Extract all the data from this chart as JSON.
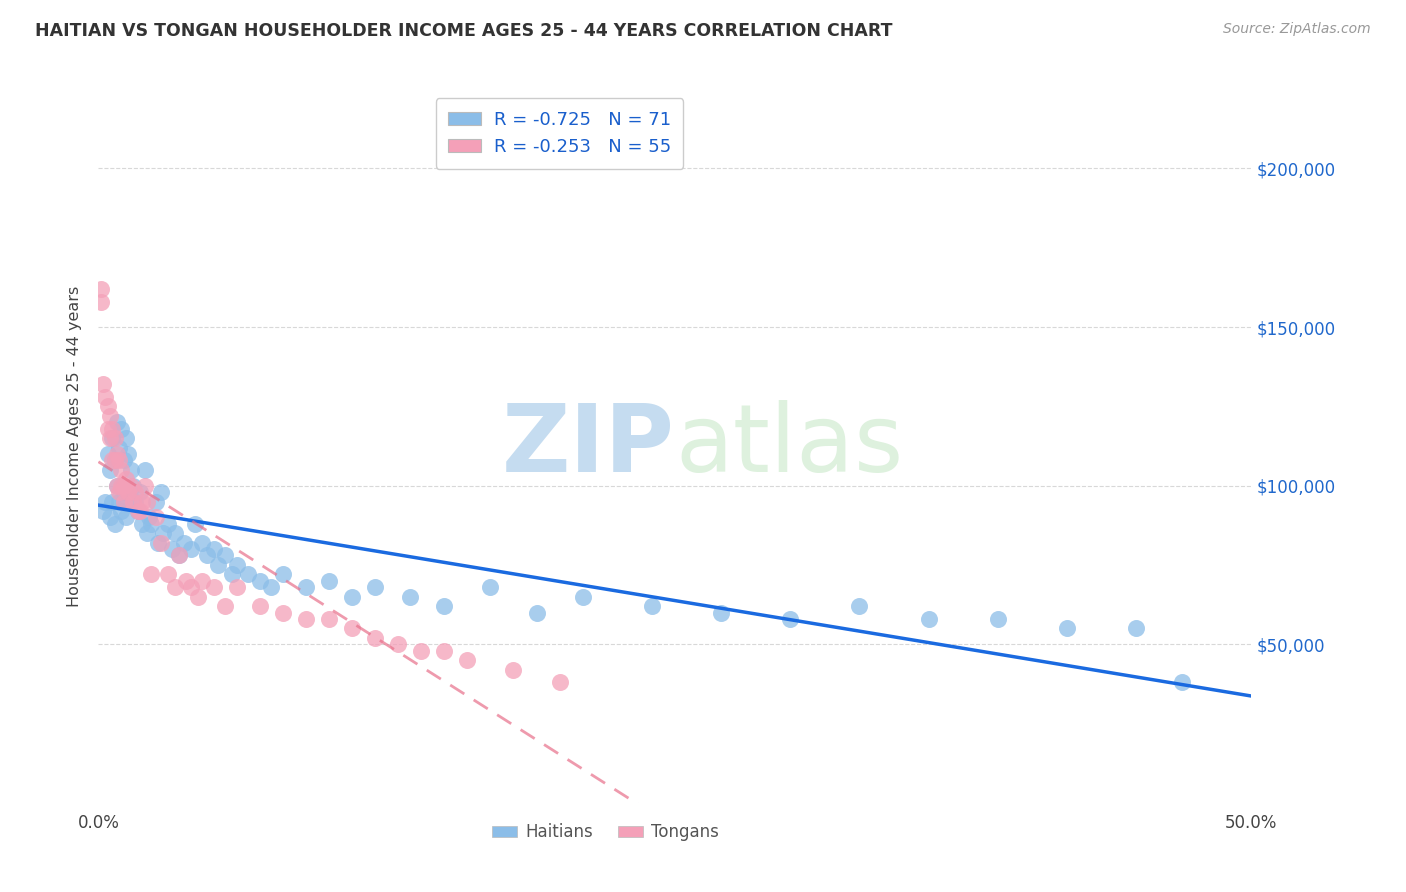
{
  "title": "HAITIAN VS TONGAN HOUSEHOLDER INCOME AGES 25 - 44 YEARS CORRELATION CHART",
  "source": "Source: ZipAtlas.com",
  "ylabel": "Householder Income Ages 25 - 44 years",
  "xlim": [
    0.0,
    0.5
  ],
  "ylim": [
    0,
    225000
  ],
  "ytick_values": [
    50000,
    100000,
    150000,
    200000
  ],
  "ytick_labels": [
    "$50,000",
    "$100,000",
    "$150,000",
    "$200,000"
  ],
  "xtick_positions": [
    0.0,
    0.1,
    0.2,
    0.3,
    0.4,
    0.5
  ],
  "xtick_labels": [
    "0.0%",
    "",
    "",
    "",
    "",
    "50.0%"
  ],
  "haitian_color": "#8BBDE8",
  "tongan_color": "#F4A0B8",
  "haitian_line_color": "#1A6AE0",
  "tongan_line_color": "#E8708A",
  "R_haitian": -0.725,
  "N_haitian": 71,
  "R_tongan": -0.253,
  "N_tongan": 55,
  "legend_color": "#1A5FCC",
  "grid_color": "#D8D8D8",
  "background_color": "#FFFFFF",
  "watermark_color": "#C5DCF0",
  "haitian_x": [
    0.002,
    0.003,
    0.004,
    0.005,
    0.005,
    0.006,
    0.006,
    0.007,
    0.007,
    0.008,
    0.008,
    0.009,
    0.009,
    0.01,
    0.01,
    0.011,
    0.011,
    0.012,
    0.012,
    0.013,
    0.013,
    0.014,
    0.015,
    0.016,
    0.017,
    0.018,
    0.019,
    0.02,
    0.021,
    0.022,
    0.023,
    0.025,
    0.026,
    0.027,
    0.028,
    0.03,
    0.032,
    0.033,
    0.035,
    0.037,
    0.04,
    0.042,
    0.045,
    0.047,
    0.05,
    0.052,
    0.055,
    0.058,
    0.06,
    0.065,
    0.07,
    0.075,
    0.08,
    0.09,
    0.1,
    0.11,
    0.12,
    0.135,
    0.15,
    0.17,
    0.19,
    0.21,
    0.24,
    0.27,
    0.3,
    0.33,
    0.36,
    0.39,
    0.42,
    0.45,
    0.47
  ],
  "haitian_y": [
    92000,
    95000,
    110000,
    105000,
    90000,
    115000,
    95000,
    108000,
    88000,
    120000,
    100000,
    112000,
    95000,
    118000,
    92000,
    108000,
    98000,
    115000,
    90000,
    110000,
    95000,
    105000,
    100000,
    95000,
    92000,
    98000,
    88000,
    105000,
    85000,
    90000,
    88000,
    95000,
    82000,
    98000,
    85000,
    88000,
    80000,
    85000,
    78000,
    82000,
    80000,
    88000,
    82000,
    78000,
    80000,
    75000,
    78000,
    72000,
    75000,
    72000,
    70000,
    68000,
    72000,
    68000,
    70000,
    65000,
    68000,
    65000,
    62000,
    68000,
    60000,
    65000,
    62000,
    60000,
    58000,
    62000,
    58000,
    58000,
    55000,
    55000,
    38000
  ],
  "tongan_x": [
    0.001,
    0.001,
    0.002,
    0.003,
    0.004,
    0.004,
    0.005,
    0.005,
    0.006,
    0.006,
    0.007,
    0.007,
    0.008,
    0.008,
    0.009,
    0.009,
    0.01,
    0.01,
    0.011,
    0.011,
    0.012,
    0.013,
    0.014,
    0.015,
    0.016,
    0.017,
    0.018,
    0.019,
    0.02,
    0.021,
    0.023,
    0.025,
    0.027,
    0.03,
    0.033,
    0.035,
    0.038,
    0.04,
    0.043,
    0.045,
    0.05,
    0.055,
    0.06,
    0.07,
    0.08,
    0.09,
    0.1,
    0.11,
    0.12,
    0.13,
    0.14,
    0.15,
    0.16,
    0.18,
    0.2
  ],
  "tongan_y": [
    158000,
    162000,
    132000,
    128000,
    125000,
    118000,
    122000,
    115000,
    118000,
    108000,
    115000,
    108000,
    110000,
    100000,
    108000,
    98000,
    105000,
    100000,
    100000,
    95000,
    102000,
    98000,
    100000,
    95000,
    98000,
    92000,
    92000,
    95000,
    100000,
    95000,
    72000,
    90000,
    82000,
    72000,
    68000,
    78000,
    70000,
    68000,
    65000,
    70000,
    68000,
    62000,
    68000,
    62000,
    60000,
    58000,
    58000,
    55000,
    52000,
    50000,
    48000,
    48000,
    45000,
    42000,
    38000
  ]
}
